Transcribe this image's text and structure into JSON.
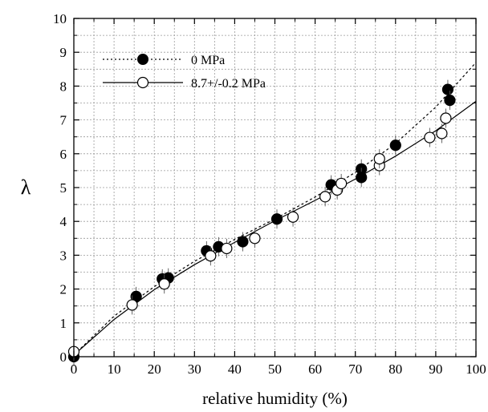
{
  "chart_data": {
    "type": "scatter",
    "xlabel": "relative humidity (%)",
    "ylabel": "λ",
    "xlim": [
      0,
      100
    ],
    "ylim": [
      0,
      10
    ],
    "x_ticks": [
      0,
      10,
      20,
      30,
      40,
      50,
      60,
      70,
      80,
      90,
      100
    ],
    "y_ticks": [
      0,
      1,
      2,
      3,
      4,
      5,
      6,
      7,
      8,
      9,
      10
    ],
    "grid": true,
    "legend_position": "top-left",
    "series": [
      {
        "name": "0 MPa",
        "marker": "filled-circle",
        "line_style": "dotted",
        "color": "#000000",
        "points": [
          {
            "x": 0,
            "y": 0.0
          },
          {
            "x": 15.5,
            "y": 1.78
          },
          {
            "x": 22,
            "y": 2.3
          },
          {
            "x": 23.5,
            "y": 2.33
          },
          {
            "x": 33,
            "y": 3.13
          },
          {
            "x": 36,
            "y": 3.25
          },
          {
            "x": 42,
            "y": 3.4
          },
          {
            "x": 50.5,
            "y": 4.07
          },
          {
            "x": 64,
            "y": 5.08
          },
          {
            "x": 65.5,
            "y": 4.98
          },
          {
            "x": 71.5,
            "y": 5.55
          },
          {
            "x": 71.5,
            "y": 5.3
          },
          {
            "x": 80,
            "y": 6.25
          },
          {
            "x": 93,
            "y": 7.9
          },
          {
            "x": 93.5,
            "y": 7.58
          }
        ],
        "fit_curve": [
          [
            0,
            0.05
          ],
          [
            10,
            1.2
          ],
          [
            20,
            2.07
          ],
          [
            30,
            2.82
          ],
          [
            40,
            3.47
          ],
          [
            50,
            4.07
          ],
          [
            60,
            4.72
          ],
          [
            70,
            5.45
          ],
          [
            80,
            6.3
          ],
          [
            90,
            7.38
          ],
          [
            100,
            8.7
          ]
        ]
      },
      {
        "name": "8.7+/-0.2 MPa",
        "marker": "open-circle",
        "line_style": "solid",
        "color": "#000000",
        "points": [
          {
            "x": 0,
            "y": 0.15
          },
          {
            "x": 14.5,
            "y": 1.53
          },
          {
            "x": 22.5,
            "y": 2.15
          },
          {
            "x": 34,
            "y": 2.98
          },
          {
            "x": 38,
            "y": 3.2
          },
          {
            "x": 45,
            "y": 3.5
          },
          {
            "x": 54.5,
            "y": 4.13
          },
          {
            "x": 62.5,
            "y": 4.73
          },
          {
            "x": 65.5,
            "y": 4.93
          },
          {
            "x": 66.5,
            "y": 5.12
          },
          {
            "x": 76,
            "y": 5.65
          },
          {
            "x": 76,
            "y": 5.85
          },
          {
            "x": 88.5,
            "y": 6.48
          },
          {
            "x": 91.5,
            "y": 6.6
          },
          {
            "x": 92.5,
            "y": 7.05
          }
        ],
        "fit_curve": [
          [
            0,
            0.05
          ],
          [
            10,
            1.1
          ],
          [
            20,
            1.98
          ],
          [
            30,
            2.72
          ],
          [
            40,
            3.38
          ],
          [
            50,
            4.02
          ],
          [
            60,
            4.62
          ],
          [
            70,
            5.25
          ],
          [
            80,
            5.93
          ],
          [
            90,
            6.68
          ],
          [
            100,
            7.55
          ]
        ]
      }
    ]
  }
}
